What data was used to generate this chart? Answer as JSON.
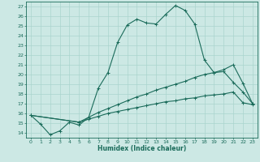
{
  "xlabel": "Humidex (Indice chaleur)",
  "bg_color": "#cce8e4",
  "line_color": "#1a6b5a",
  "grid_color": "#aad4ce",
  "xlim": [
    -0.5,
    23.5
  ],
  "ylim": [
    13.5,
    27.5
  ],
  "xticks": [
    0,
    1,
    2,
    3,
    4,
    5,
    6,
    7,
    8,
    9,
    10,
    11,
    12,
    13,
    14,
    15,
    16,
    17,
    18,
    19,
    20,
    21,
    22,
    23
  ],
  "yticks": [
    14,
    15,
    16,
    17,
    18,
    19,
    20,
    21,
    22,
    23,
    24,
    25,
    26,
    27
  ],
  "curve1_x": [
    0,
    1,
    2,
    3,
    4,
    5,
    6,
    7,
    8,
    9,
    10,
    11,
    12,
    13,
    14,
    15,
    16,
    17,
    18,
    19,
    20,
    21,
    22,
    23
  ],
  "curve1_y": [
    15.8,
    14.9,
    13.8,
    14.2,
    15.1,
    14.8,
    15.6,
    18.6,
    20.2,
    23.3,
    25.1,
    25.7,
    25.3,
    25.2,
    26.2,
    27.1,
    26.6,
    25.2,
    21.5,
    20.2,
    20.3,
    19.2,
    18.2,
    17.0
  ],
  "curve2_x": [
    0,
    5,
    6,
    7,
    8,
    9,
    10,
    11,
    12,
    13,
    14,
    15,
    16,
    17,
    18,
    19,
    20,
    21,
    22,
    23
  ],
  "curve2_y": [
    15.8,
    15.1,
    15.6,
    16.1,
    16.5,
    16.9,
    17.3,
    17.7,
    18.0,
    18.4,
    18.7,
    19.0,
    19.3,
    19.7,
    20.0,
    20.2,
    20.5,
    21.0,
    19.1,
    17.0
  ],
  "curve3_x": [
    0,
    5,
    6,
    7,
    8,
    9,
    10,
    11,
    12,
    13,
    14,
    15,
    16,
    17,
    18,
    19,
    20,
    21,
    22,
    23
  ],
  "curve3_y": [
    15.8,
    15.1,
    15.4,
    15.7,
    16.0,
    16.2,
    16.4,
    16.6,
    16.8,
    17.0,
    17.2,
    17.3,
    17.5,
    17.6,
    17.8,
    17.9,
    18.0,
    18.2,
    17.1,
    16.9
  ]
}
